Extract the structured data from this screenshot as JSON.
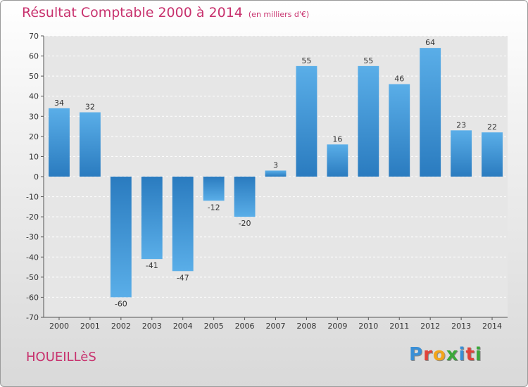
{
  "header": {
    "title": "Résultat Comptable 2000 à 2014",
    "subtitle": "(en milliers d'€)"
  },
  "footer": {
    "town": "HOUEILLèS",
    "logo_letters": [
      "P",
      "r",
      "o",
      "x",
      "i",
      "t",
      "i"
    ],
    "logo_colors": [
      "#3a8fd6",
      "#e0423a",
      "#f2a51a",
      "#3aa83a",
      "#3a8fd6",
      "#e0423a",
      "#3aa83a"
    ]
  },
  "chart_data": {
    "type": "bar",
    "title": "Résultat Comptable 2000 à 2014",
    "subtitle": "(en milliers d'€)",
    "categories": [
      "2000",
      "2001",
      "2002",
      "2003",
      "2004",
      "2005",
      "2006",
      "2007",
      "2008",
      "2009",
      "2010",
      "2011",
      "2012",
      "2013",
      "2014"
    ],
    "values": [
      34,
      32,
      -60,
      -41,
      -47,
      -12,
      -20,
      3,
      55,
      16,
      55,
      46,
      64,
      23,
      22
    ],
    "ylim": [
      -70,
      70
    ],
    "yticks": [
      -70,
      -60,
      -50,
      -40,
      -30,
      -20,
      -10,
      0,
      10,
      20,
      30,
      40,
      50,
      60,
      70
    ],
    "grid": true,
    "bar_color_light": "#5aaee8",
    "bar_color_dark": "#2a7bbf"
  }
}
